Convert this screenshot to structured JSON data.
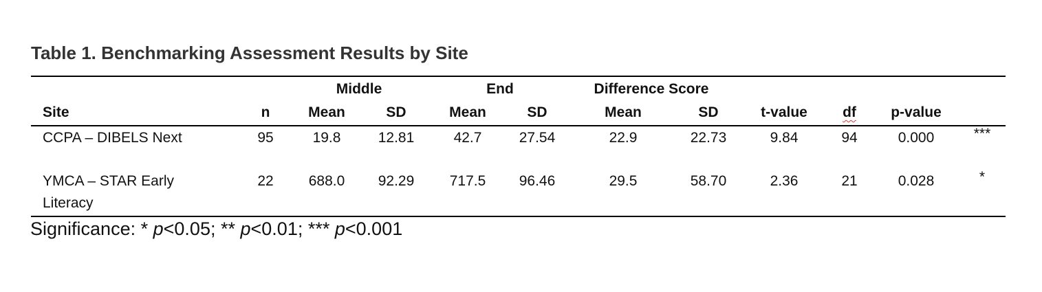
{
  "title": "Table 1.  Benchmarking Assessment Results by Site",
  "table": {
    "group_headers": [
      "Middle",
      "End",
      "Difference Score"
    ],
    "headers": [
      "Site",
      "n",
      "Mean",
      "SD",
      "Mean",
      "SD",
      "Mean",
      "SD",
      "t-value",
      "df",
      "p-value"
    ],
    "rows": [
      [
        "CCPA – DIBELS Next",
        "95",
        "19.8",
        "12.81",
        "42.7",
        "27.54",
        "22.9",
        "22.73",
        "9.84",
        "94",
        "0.000",
        "***"
      ],
      [
        "YMCA – STAR Early Literacy",
        "22",
        "688.0",
        "92.29",
        "717.5",
        "96.46",
        "29.5",
        "58.70",
        "2.36",
        "21",
        "0.028",
        "*"
      ]
    ]
  },
  "footnote": [
    "Significance: * ",
    "p",
    "<0.05; ** ",
    "p",
    "<0.01; *** ",
    "p",
    "<0.001"
  ]
}
